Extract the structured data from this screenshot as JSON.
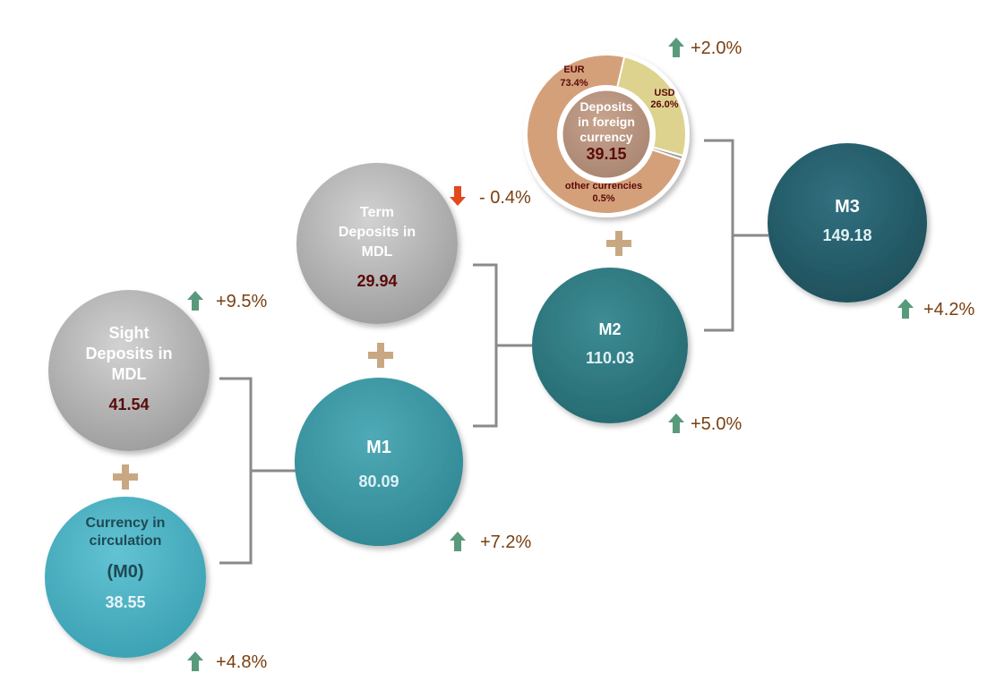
{
  "diagram": {
    "m0": {
      "title_line1": "Currency in",
      "title_line2": "circulation",
      "title_line3": "(M0)",
      "value": "38.55",
      "change": "+4.8%",
      "direction": "up"
    },
    "sight": {
      "title_line1": "Sight",
      "title_line2": "Deposits in",
      "title_line3": "MDL",
      "value": "41.54",
      "change": "+9.5%",
      "direction": "up"
    },
    "m1": {
      "title": "M1",
      "value": "80.09",
      "change": "+7.2%",
      "direction": "up"
    },
    "term": {
      "title_line1": "Term",
      "title_line2": "Deposits in",
      "title_line3": "MDL",
      "value": "29.94",
      "change": "- 0.4%",
      "direction": "down"
    },
    "m2": {
      "title": "M2",
      "value": "110.03",
      "change": "+5.0%",
      "direction": "up"
    },
    "foreign": {
      "title_line1": "Deposits",
      "title_line2": "in foreign",
      "title_line3": "currency",
      "value": "39.15",
      "change": "+2.0%",
      "direction": "up",
      "slices": [
        {
          "name": "EUR",
          "label": "73.4%",
          "value": 73.4,
          "color": "#d4a07a"
        },
        {
          "name": "USD",
          "label": "26.0%",
          "value": 26.0,
          "color": "#ddd38f"
        },
        {
          "name": "other currencies",
          "label": "0.5%",
          "value": 0.5,
          "color": "#a0a0a0"
        }
      ]
    },
    "m3": {
      "title": "M3",
      "value": "149.18",
      "change": "+4.2%",
      "direction": "up"
    }
  },
  "colors": {
    "up_arrow": "#5a9a7c",
    "down_arrow": "#e04a1e",
    "plus": "#c8a882",
    "bracket": "#8a8a8a",
    "gray_circle": "#b0b0b0",
    "m0_circle": "#4aaec0",
    "m1_circle": "#3a96a2",
    "m2_circle": "#2e7880",
    "m3_circle": "#245a66",
    "dark_value": "#5a0a0a",
    "percent_text": "#7a3f10"
  }
}
